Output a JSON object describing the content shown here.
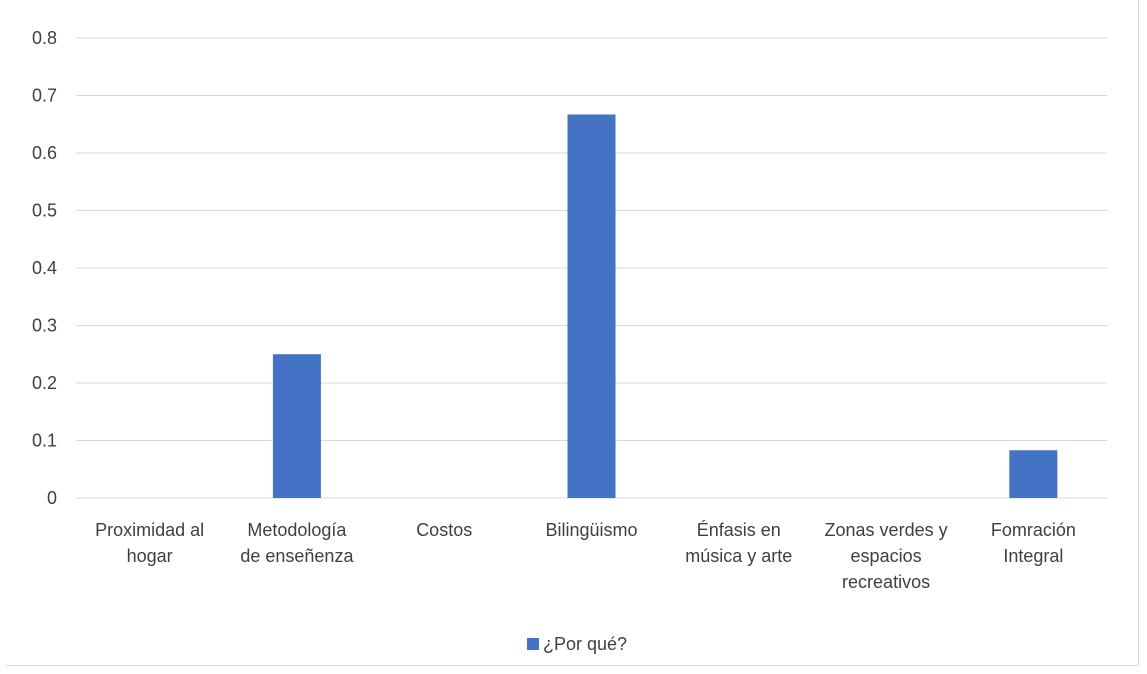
{
  "chart_data": {
    "type": "bar",
    "categories": [
      [
        "Proximidad al",
        "hogar"
      ],
      [
        "Metodología",
        "de enseñenza"
      ],
      [
        "Costos"
      ],
      [
        "Bilingüismo"
      ],
      [
        "Énfasis en",
        "música y arte"
      ],
      [
        "Zonas verdes y",
        "espacios",
        "recreativos"
      ],
      [
        "Fomración",
        "Integral"
      ]
    ],
    "series": [
      {
        "name": "¿Por qué?",
        "color": "#4472c4",
        "values": [
          0,
          0.25,
          0,
          0.667,
          0,
          0,
          0.083
        ]
      }
    ],
    "yticks": [
      "0",
      "0.1",
      "0.2",
      "0.3",
      "0.4",
      "0.5",
      "0.6",
      "0.7",
      "0.8"
    ],
    "ylim": [
      0,
      0.8
    ],
    "grid": true,
    "legend_position": "bottom",
    "gridline_color": "#d9d9d9"
  }
}
